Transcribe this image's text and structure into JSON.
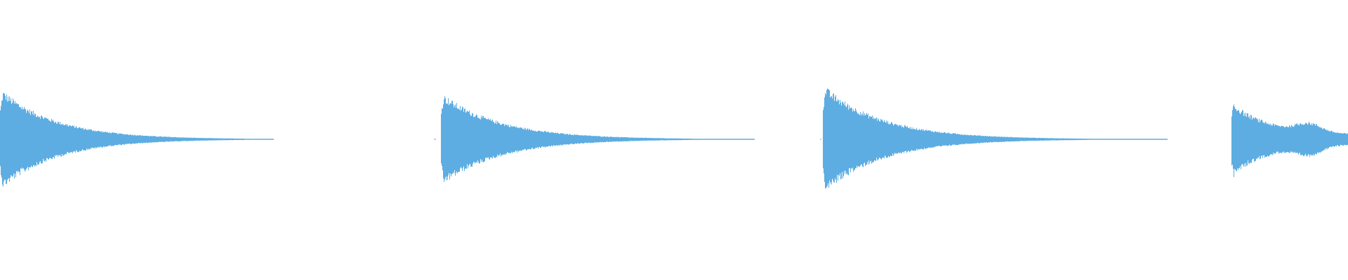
{
  "waveform": {
    "color": "#5DADE2",
    "background": "#FFFFFF",
    "segment_count": 4
  }
}
